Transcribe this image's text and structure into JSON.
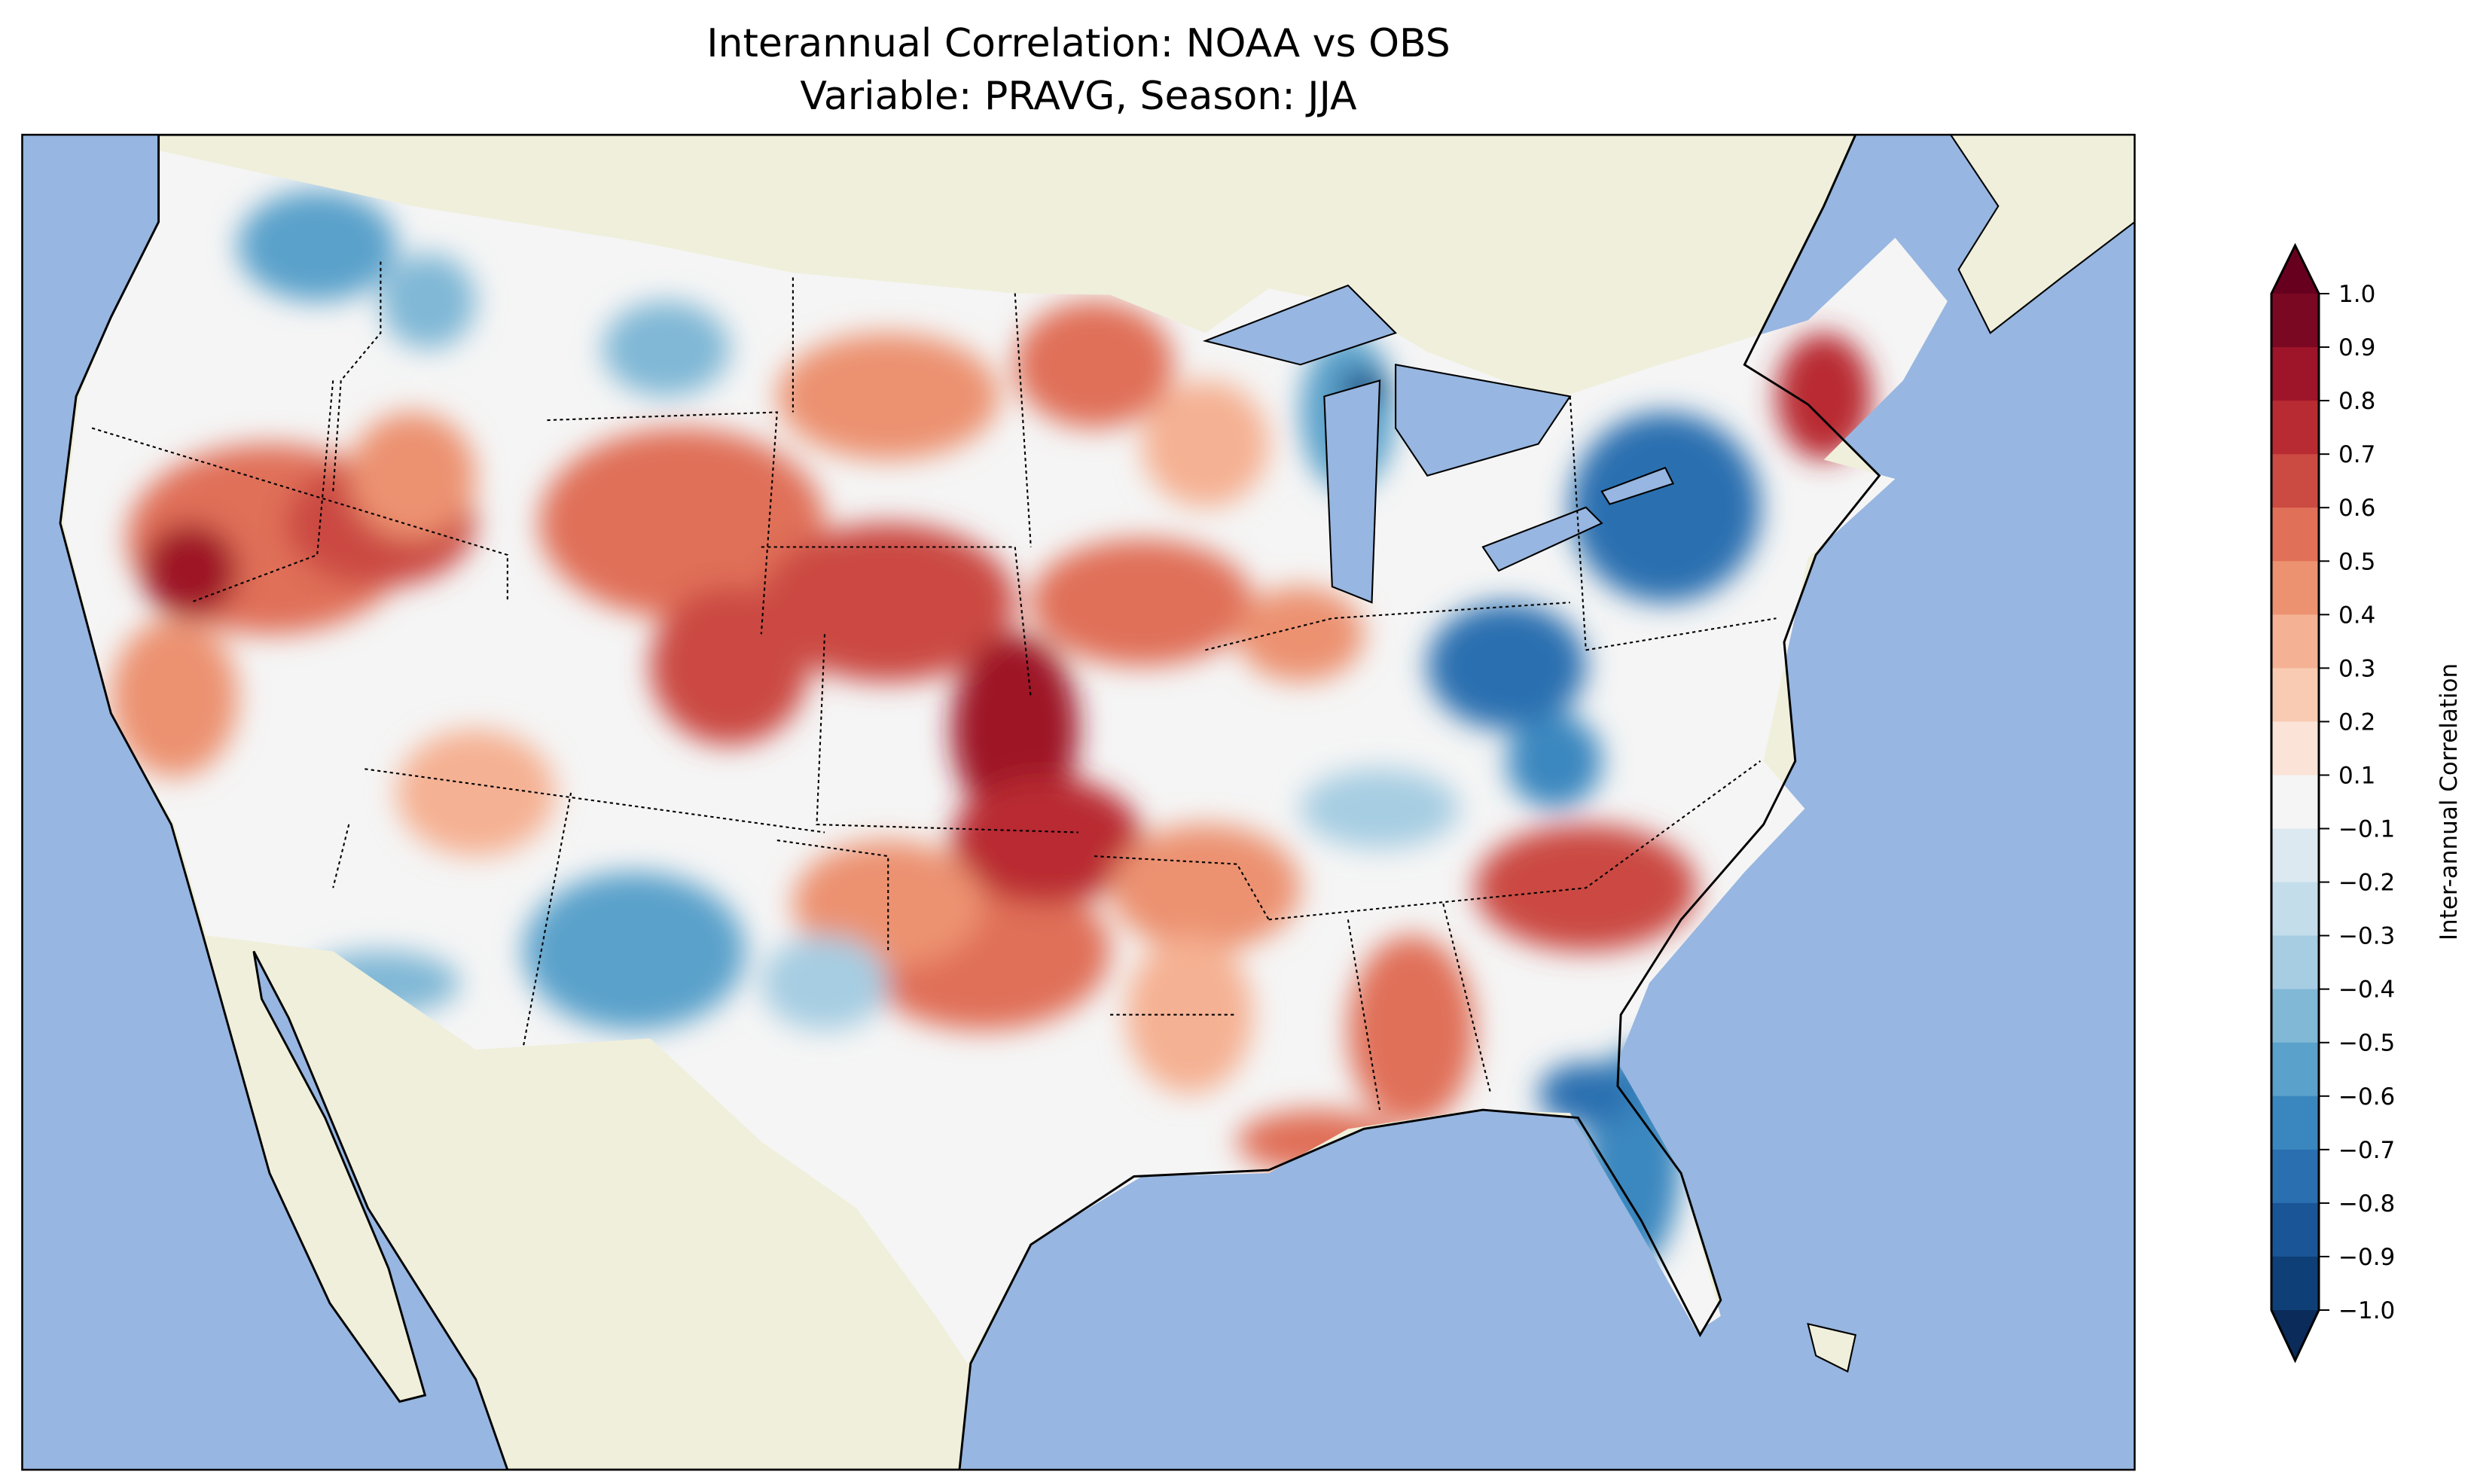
{
  "chart_data": {
    "type": "heatmap",
    "title": [
      "Interannual Correlation: NOAA vs OBS",
      "Variable: PRAVG, Season: JJA"
    ],
    "colorbar": {
      "label": "Inter-annual Correlation",
      "range": [
        -1.0,
        1.0
      ],
      "extend": "both",
      "ticks": [
        "1.0",
        "0.9",
        "0.8",
        "0.7",
        "0.6",
        "0.5",
        "0.4",
        "0.3",
        "0.2",
        "0.1",
        "−0.1",
        "−0.2",
        "−0.3",
        "−0.4",
        "−0.5",
        "−0.6",
        "−0.7",
        "−0.8",
        "−0.9",
        "−1.0"
      ],
      "colors_top_to_bottom": [
        "#7a0822",
        "#9e1428",
        "#b92b33",
        "#cb4a42",
        "#e07058",
        "#ec9271",
        "#f5b193",
        "#f9cbb3",
        "#fbe3d7",
        "#f5f5f5",
        "#dde9f1",
        "#c3ddeb",
        "#a6cde2",
        "#80b8d6",
        "#5aa1cb",
        "#3a87bf",
        "#2a6fb0",
        "#1a5597",
        "#0e3f77"
      ],
      "over_color": "#67001f",
      "under_color": "#0b2b5a"
    },
    "map": {
      "region": "Contiguous United States",
      "ocean_color": "#97b6e1",
      "land_color": "#efefdb"
    }
  }
}
